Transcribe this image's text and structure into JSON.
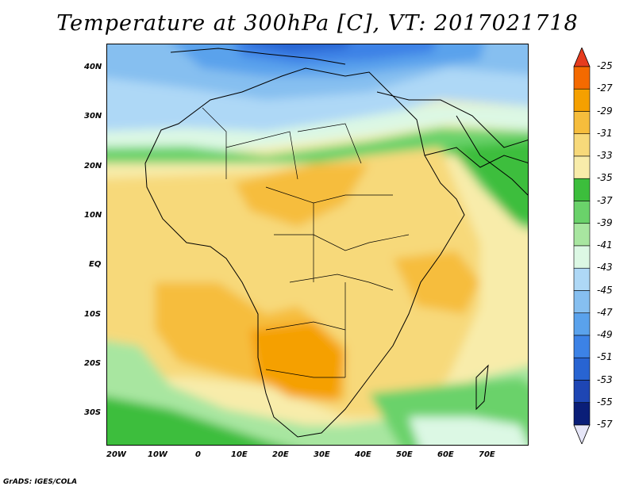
{
  "title": "Temperature at 300hPa [C], VT: 2017021718",
  "footer": "GrADS: IGES/COLA",
  "map": {
    "lat_labels": [
      "40N",
      "30N",
      "20N",
      "10N",
      "EQ",
      "10S",
      "20S",
      "30S"
    ],
    "lon_labels": [
      "20W",
      "10W",
      "0",
      "10E",
      "20E",
      "30E",
      "40E",
      "50E",
      "60E",
      "70E"
    ]
  },
  "colorbar": {
    "labels": [
      "-25",
      "-27",
      "-29",
      "-31",
      "-33",
      "-35",
      "-37",
      "-39",
      "-41",
      "-43",
      "-45",
      "-47",
      "-49",
      "-51",
      "-53",
      "-55",
      "-57"
    ],
    "colors": [
      "#f03c00",
      "#f46a00",
      "#f5a000",
      "#f6bd3c",
      "#f7d97a",
      "#f8ecaa",
      "#3cbe3c",
      "#6ad26a",
      "#a8e6a0",
      "#dcf8e4",
      "#aed8f6",
      "#86bff0",
      "#5aa2ec",
      "#3c82e6",
      "#2864d2",
      "#1e46b4",
      "#0a1e78"
    ],
    "top_arrow_color": "#e63c1e",
    "bottom_arrow_color": "#e6e6f8"
  }
}
